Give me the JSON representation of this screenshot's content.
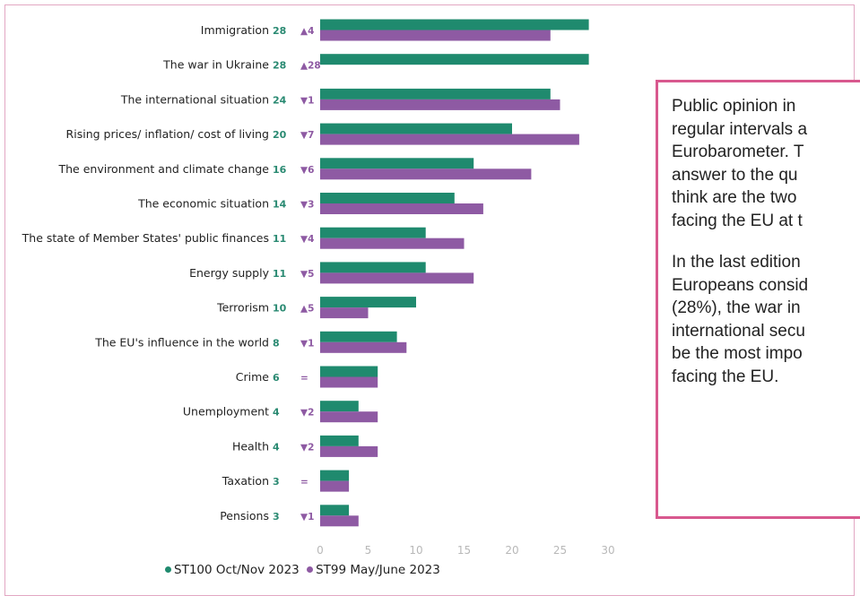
{
  "chart_data": {
    "type": "bar",
    "orientation": "horizontal",
    "categories": [
      "Immigration",
      "The war in Ukraine",
      "The international situation",
      "Rising prices/ inflation/ cost of living",
      "The environment and climate change",
      "The economic situation",
      "The state of Member States' public finances",
      "Energy supply",
      "Terrorism",
      "The EU's influence in the world",
      "Crime",
      "Unemployment",
      "Health",
      "Taxation",
      "Pensions"
    ],
    "series": [
      {
        "name": "ST100 Oct/Nov 2023",
        "color": "#1f8a6e",
        "values": [
          28,
          28,
          24,
          20,
          16,
          14,
          11,
          11,
          10,
          8,
          6,
          4,
          4,
          3,
          3
        ]
      },
      {
        "name": "ST99 May/June 2023",
        "color": "#8e5aa3",
        "values": [
          24,
          null,
          25,
          27,
          22,
          17,
          15,
          16,
          5,
          9,
          6,
          6,
          6,
          3,
          4
        ]
      }
    ],
    "value_labels": [
      "28",
      "28",
      "24",
      "20",
      "16",
      "14",
      "11",
      "11",
      "10",
      "8",
      "6",
      "4",
      "4",
      "3",
      "3"
    ],
    "changes": [
      "▲4",
      "▲28",
      "▼1",
      "▼7",
      "▼6",
      "▼3",
      "▼4",
      "▼5",
      "▲5",
      "▼1",
      "=",
      "▼2",
      "▼2",
      "=",
      "▼1"
    ],
    "xticks": [
      "0",
      "5",
      "10",
      "15",
      "20",
      "25",
      "30"
    ],
    "xlim": [
      0,
      30
    ],
    "grid": false,
    "legend_position": "bottom"
  },
  "legend": [
    {
      "label": "ST100 Oct/Nov 2023",
      "color": "#1f8a6e"
    },
    {
      "label": "ST99 May/June 2023",
      "color": "#8e5aa3"
    }
  ],
  "textbox": {
    "paragraphs": [
      [
        "Public opinion in",
        "regular intervals a",
        "Eurobarometer. T",
        "answer to the qu",
        "think are the two",
        "facing the EU at t"
      ],
      [
        "In the last edition",
        "Europeans consid",
        "(28%), the war in",
        "international secu",
        "be the most impo",
        "facing the EU."
      ]
    ],
    "border_color": "#d8588e"
  }
}
